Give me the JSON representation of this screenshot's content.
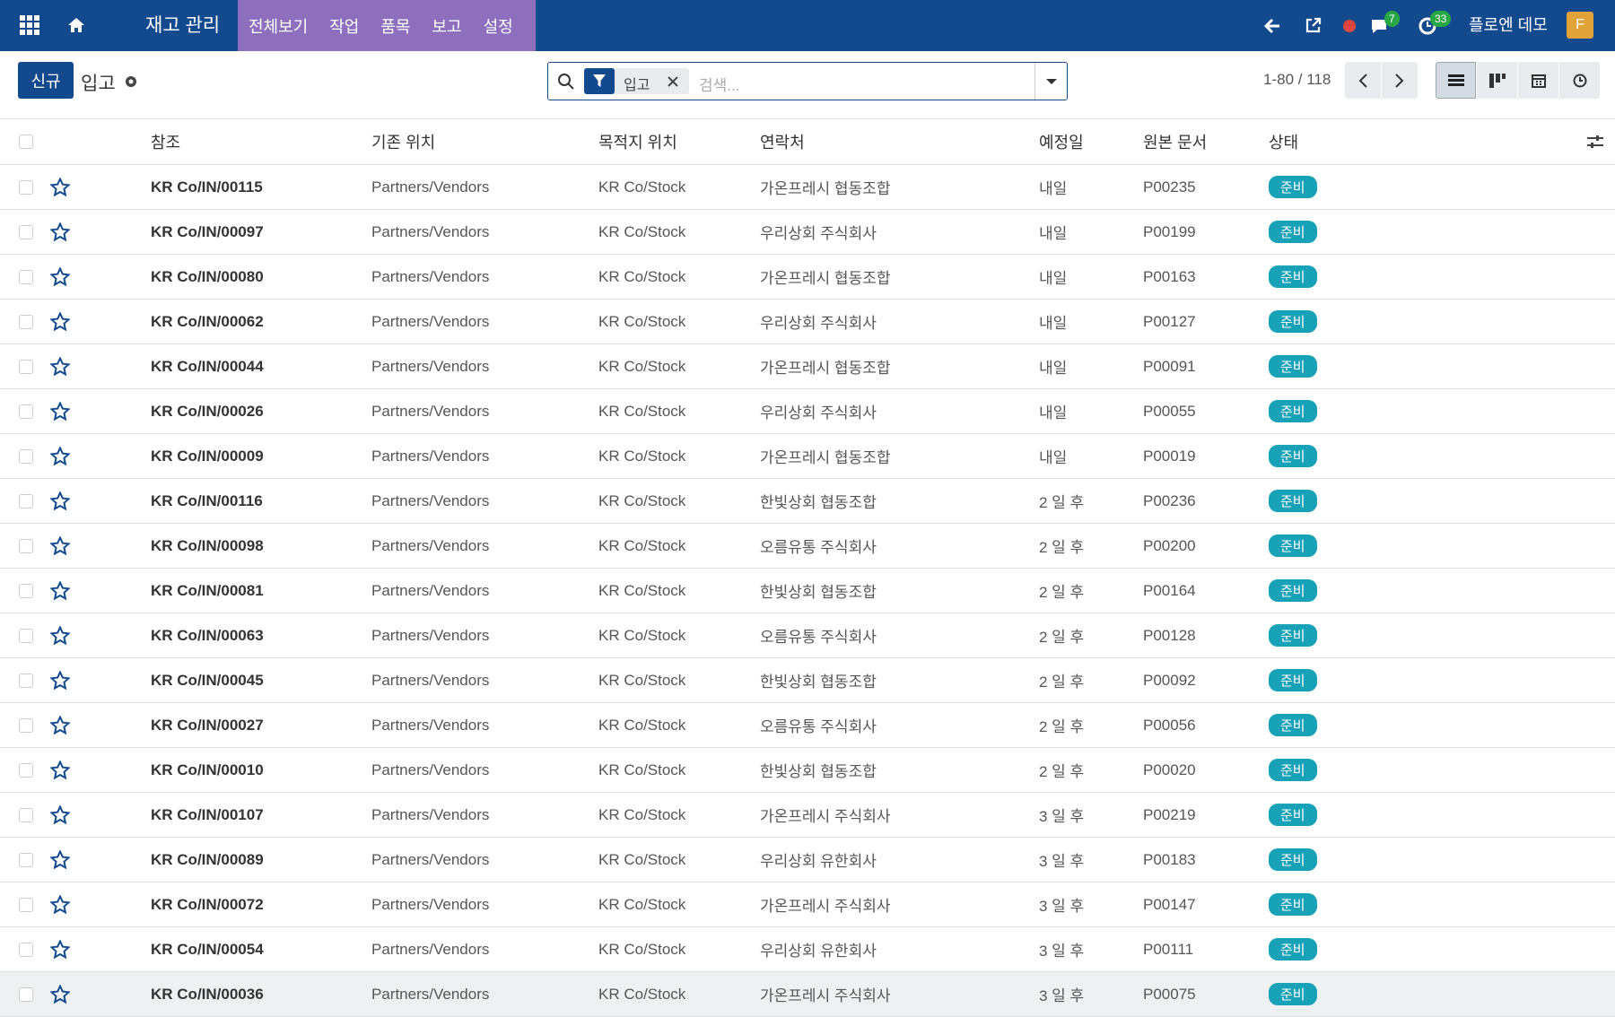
{
  "navbar": {
    "app": "재고 관리",
    "menu": [
      "전체보기",
      "작업",
      "품목",
      "보고",
      "설정"
    ],
    "chat_badge": "7",
    "activity_badge": "33",
    "user": "플로엔 데모",
    "avatar": "F"
  },
  "control": {
    "new_button": "신규",
    "breadcrumb": "입고",
    "facet": "입고",
    "search_placeholder": "검색...",
    "pager": "1-80 / 118"
  },
  "table": {
    "columns": [
      "참조",
      "기존 위치",
      "목적지 위치",
      "연락처",
      "예정일",
      "원본 문서",
      "상태"
    ],
    "rows": [
      [
        "KR Co/IN/00115",
        "Partners/Vendors",
        "KR Co/Stock",
        "가온프레시 협동조합",
        "내일",
        "P00235",
        "준비"
      ],
      [
        "KR Co/IN/00097",
        "Partners/Vendors",
        "KR Co/Stock",
        "우리상회 주식회사",
        "내일",
        "P00199",
        "준비"
      ],
      [
        "KR Co/IN/00080",
        "Partners/Vendors",
        "KR Co/Stock",
        "가온프레시 협동조합",
        "내일",
        "P00163",
        "준비"
      ],
      [
        "KR Co/IN/00062",
        "Partners/Vendors",
        "KR Co/Stock",
        "우리상회 주식회사",
        "내일",
        "P00127",
        "준비"
      ],
      [
        "KR Co/IN/00044",
        "Partners/Vendors",
        "KR Co/Stock",
        "가온프레시 협동조합",
        "내일",
        "P00091",
        "준비"
      ],
      [
        "KR Co/IN/00026",
        "Partners/Vendors",
        "KR Co/Stock",
        "우리상회 주식회사",
        "내일",
        "P00055",
        "준비"
      ],
      [
        "KR Co/IN/00009",
        "Partners/Vendors",
        "KR Co/Stock",
        "가온프레시 협동조합",
        "내일",
        "P00019",
        "준비"
      ],
      [
        "KR Co/IN/00116",
        "Partners/Vendors",
        "KR Co/Stock",
        "한빛상회 협동조합",
        "2 일 후",
        "P00236",
        "준비"
      ],
      [
        "KR Co/IN/00098",
        "Partners/Vendors",
        "KR Co/Stock",
        "오름유통 주식회사",
        "2 일 후",
        "P00200",
        "준비"
      ],
      [
        "KR Co/IN/00081",
        "Partners/Vendors",
        "KR Co/Stock",
        "한빛상회 협동조합",
        "2 일 후",
        "P00164",
        "준비"
      ],
      [
        "KR Co/IN/00063",
        "Partners/Vendors",
        "KR Co/Stock",
        "오름유통 주식회사",
        "2 일 후",
        "P00128",
        "준비"
      ],
      [
        "KR Co/IN/00045",
        "Partners/Vendors",
        "KR Co/Stock",
        "한빛상회 협동조합",
        "2 일 후",
        "P00092",
        "준비"
      ],
      [
        "KR Co/IN/00027",
        "Partners/Vendors",
        "KR Co/Stock",
        "오름유통 주식회사",
        "2 일 후",
        "P00056",
        "준비"
      ],
      [
        "KR Co/IN/00010",
        "Partners/Vendors",
        "KR Co/Stock",
        "한빛상회 협동조합",
        "2 일 후",
        "P00020",
        "준비"
      ],
      [
        "KR Co/IN/00107",
        "Partners/Vendors",
        "KR Co/Stock",
        "가온프레시 주식회사",
        "3 일 후",
        "P00219",
        "준비"
      ],
      [
        "KR Co/IN/00089",
        "Partners/Vendors",
        "KR Co/Stock",
        "우리상회 유한회사",
        "3 일 후",
        "P00183",
        "준비"
      ],
      [
        "KR Co/IN/00072",
        "Partners/Vendors",
        "KR Co/Stock",
        "가온프레시 주식회사",
        "3 일 후",
        "P00147",
        "준비"
      ],
      [
        "KR Co/IN/00054",
        "Partners/Vendors",
        "KR Co/Stock",
        "우리상회 유한회사",
        "3 일 후",
        "P00111",
        "준비"
      ],
      [
        "KR Co/IN/00036",
        "Partners/Vendors",
        "KR Co/Stock",
        "가온프레시 주식회사",
        "3 일 후",
        "P00075",
        "준비"
      ]
    ]
  }
}
